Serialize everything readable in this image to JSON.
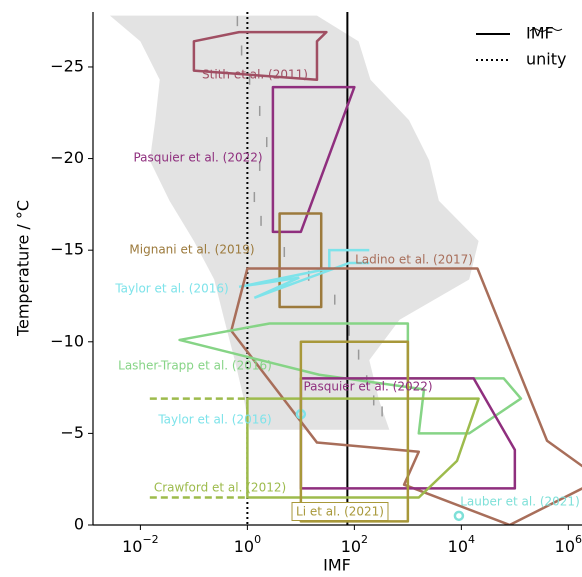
{
  "chart_data": {
    "type": "polygon",
    "x_label": "IMF",
    "y_label": "Temperature / °C",
    "xscale": "log",
    "xlim": [
      0.0013,
      1800000
    ],
    "ylim": [
      0,
      -28
    ],
    "xticks": [
      {
        "value": 0.01,
        "label": "10",
        "exponent": "−2"
      },
      {
        "value": 1,
        "label": "10",
        "exponent": "0"
      },
      {
        "value": 100,
        "label": "10",
        "exponent": "2"
      },
      {
        "value": 10000,
        "label": "10",
        "exponent": "4"
      },
      {
        "value": 1000000,
        "label": "10",
        "exponent": "6"
      }
    ],
    "yticks": [
      {
        "value": -25,
        "label": "−25"
      },
      {
        "value": -20,
        "label": "−20"
      },
      {
        "value": -15,
        "label": "−15"
      },
      {
        "value": -10,
        "label": "−10"
      },
      {
        "value": -5,
        "label": "−5"
      },
      0
    ],
    "band": {
      "color": "#e3e3e3",
      "y": [
        -27.8,
        -26.4,
        -24.3,
        -22.1,
        -19.9,
        -17.7,
        -15.5,
        -13.4,
        -11.2,
        -9.0,
        -6.8,
        -5.2
      ],
      "x_low": [
        0.0027,
        0.01,
        0.023,
        0.019,
        0.015,
        0.035,
        0.1,
        0.24,
        0.37,
        0.58,
        0.87,
        1.1
      ],
      "x_high": [
        20,
        120,
        200,
        1050,
        2500,
        3800,
        21000,
        14000,
        700,
        190,
        290,
        450
      ]
    },
    "median": {
      "color": "#999999",
      "x": [
        0.65,
        0.78,
        1.1,
        1.7,
        2.3,
        1.7,
        1.35,
        1.8,
        4.9,
        14,
        43,
        80,
        120,
        170,
        230,
        330
      ],
      "y": [
        -27.5,
        -25.9,
        -24.3,
        -22.6,
        -20.9,
        -19.6,
        -17.9,
        -16.6,
        -14.9,
        -13.6,
        -12.3,
        -10.6,
        -9.3,
        -7.9,
        -6.8,
        -6.2
      ]
    },
    "reference_lines": [
      {
        "name": "IMF",
        "x": 74,
        "style": "solid",
        "color": "#000000"
      },
      {
        "name": "unity",
        "x": 1,
        "style": "dotted",
        "color": "#000000"
      }
    ],
    "legend": "upper right",
    "series": [
      {
        "name": "Stith et al. (2011)",
        "color": "#a04f63",
        "shape": "polygon",
        "x": [
          0.1,
          0.7,
          30,
          20,
          20,
          0.1
        ],
        "y": [
          -26.4,
          -26.9,
          -26.9,
          -26.4,
          -24.3,
          -24.8
        ]
      },
      {
        "name": "Pasquier et al. (2022)",
        "color": "#8f2f7e",
        "shape": "polygon",
        "x": [
          3,
          100,
          10,
          3
        ],
        "y": [
          -23.9,
          -23.9,
          -16,
          -16
        ]
      },
      {
        "name": "Mignani et al. (2019)",
        "color": "#9c7a3c",
        "shape": "polygon",
        "x": [
          4,
          24,
          24,
          4
        ],
        "y": [
          -17,
          -17,
          -11.9,
          -11.9
        ]
      },
      {
        "name": "Taylor et al. (2016)",
        "color": "#7ee3ea",
        "shape": "line",
        "x": [
          190,
          34,
          34,
          0.7,
          9.3,
          1.35,
          80,
          190
        ],
        "y": [
          -15,
          -15,
          -14,
          -13,
          -13.5,
          -12.4,
          -14.3,
          -14.3
        ]
      },
      {
        "name": "Ladino et al. (2017)",
        "color": "#a86e5a",
        "shape": "polygon",
        "x": [
          1,
          20000,
          400000,
          4000000,
          80000,
          850,
          1600,
          20,
          0.5
        ],
        "y": [
          -14,
          -14,
          -4.6,
          -2.5,
          0,
          -2.2,
          -4,
          -4.5,
          -10.6
        ]
      },
      {
        "name": "Lasher-Trapp et al. (2016)",
        "color": "#86d486",
        "shape": "polygon",
        "x": [
          2.6,
          1000,
          1000,
          62000,
          130000,
          14000,
          1600,
          2000,
          22,
          0.054
        ],
        "y": [
          -11,
          -11,
          -8,
          -8,
          -6.9,
          -5,
          -5,
          -7.4,
          -8.2,
          -10.1
        ]
      },
      {
        "name": "Pasquier et al. (2022)",
        "color": "#8f2f7e",
        "shape": "polygon",
        "x": [
          10,
          17000,
          100000,
          100000,
          10
        ],
        "y": [
          -8,
          -8,
          -4.1,
          -2,
          -2
        ]
      },
      {
        "name": "Taylor et al. (2016)",
        "color": "#7ee3ea",
        "shape": "point",
        "x": [
          10
        ],
        "y": [
          -6.05
        ]
      },
      {
        "name": "Crawford et al. (2012)",
        "color": "#9dbb4c",
        "shape": "polygon",
        "x": [
          1,
          21000,
          8300,
          1600,
          1
        ],
        "y": [
          -6.9,
          -6.9,
          -3.5,
          -1.5,
          -1.5
        ],
        "extensions": [
          {
            "x": [
              0.015,
              1
            ],
            "y": [
              -6.9,
              -6.9
            ]
          },
          {
            "x": [
              0.015,
              1
            ],
            "y": [
              -1.5,
              -1.5
            ]
          }
        ]
      },
      {
        "name": "Li et al. (2021)",
        "color": "#a8983a",
        "shape": "polygon",
        "x": [
          10,
          1000,
          1000,
          10
        ],
        "y": [
          -10,
          -10,
          -0.2,
          -0.2
        ]
      },
      {
        "name": "Lauber et al. (2021)",
        "color": "#7ee0d8",
        "shape": "point",
        "x": [
          9000
        ],
        "y": [
          -0.5
        ]
      }
    ]
  }
}
